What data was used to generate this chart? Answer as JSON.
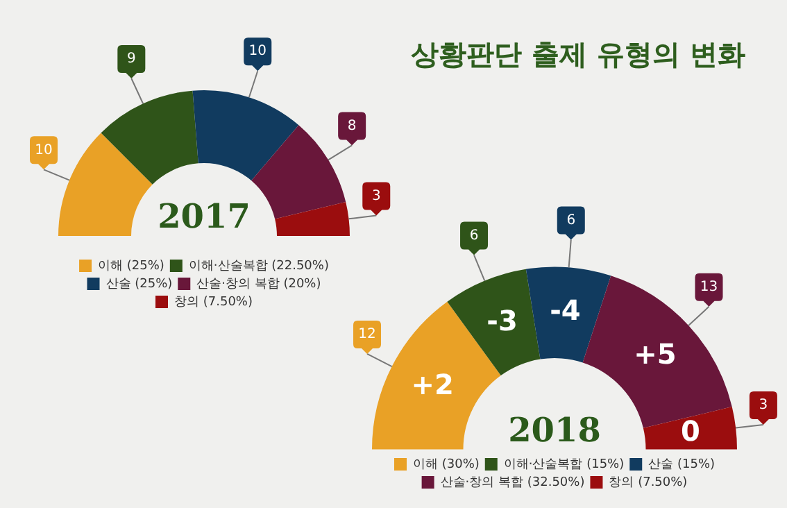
{
  "chart_data": [
    {
      "type": "donut",
      "title": "상황판단 출제 유형의 변화",
      "categories": [
        "이해 (25%)",
        "이해·산술복합 (22.50%)",
        "산술 (25%)",
        "산술·창의 복합 (20%)",
        "창의 (7.50%)"
      ],
      "values": [
        10,
        9,
        10,
        8,
        3
      ],
      "colors": [
        "#e9a126",
        "#2f5419",
        "#113b5f",
        "#69173a",
        "#9b0d0e"
      ],
      "data_labels": true,
      "legend": "bottom",
      "annotations": [
        "2017"
      ]
    },
    {
      "type": "donut",
      "categories": [
        "이해 (30%)",
        "이해·산술복합 (15%)",
        "산술 (15%)",
        "산술·창의 복합 (32.50%)",
        "창의 (7.50%)"
      ],
      "values": [
        12,
        6,
        6,
        13,
        3
      ],
      "colors": [
        "#e9a126",
        "#2f5419",
        "#113b5f",
        "#69173a",
        "#9b0d0e"
      ],
      "data_labels": true,
      "legend": "bottom",
      "annotations": [
        "2018",
        {
          "text": "+2",
          "x": "이해 (30%)"
        },
        {
          "text": "-3",
          "x": "이해·산술복합 (15%)"
        },
        {
          "text": "-4",
          "x": "산술 (15%)"
        },
        {
          "text": "+5",
          "x": "산술·창의 복합 (32.50%)"
        },
        {
          "text": "0",
          "x": "창의 (7.50%)"
        }
      ]
    }
  ]
}
